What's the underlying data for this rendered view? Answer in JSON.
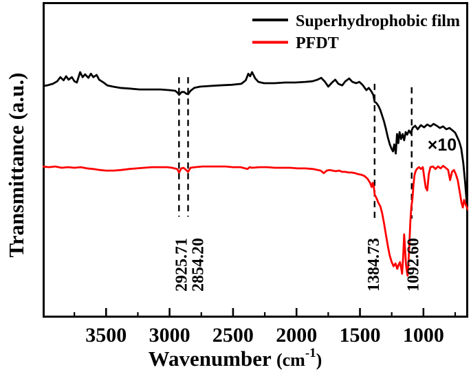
{
  "chart_data": {
    "type": "line",
    "title": "",
    "ylabel": "Transmittance (a.u.)",
    "xlabel": {
      "word": "Wavenumber ",
      "unit": "(cm",
      "sup": "-1",
      "close": ")"
    },
    "x_axis": {
      "min": 4000,
      "max": 647,
      "reversed": true,
      "unit": "cm-1",
      "major_ticks": [
        3500,
        3000,
        2500,
        2000,
        1500,
        1000
      ],
      "minor_ticks": [
        3750,
        3250,
        2750,
        2250,
        1750,
        1250,
        750
      ]
    },
    "y_axis": {
      "label": "Transmittance (a.u.)",
      "range": [
        0,
        1
      ],
      "ticks": [],
      "arbitrary_units": true
    },
    "grid": false,
    "legend_position": "top-right-inside",
    "legend": [
      {
        "label": "Superhydrophobic film",
        "color": "#000000"
      },
      {
        "label": "PFDT",
        "color": "#ff0000"
      }
    ],
    "annotations": {
      "scale_note": "×10",
      "peak_lines": [
        {
          "value": 2925.71,
          "label": "2925.71",
          "line_top": 0.762,
          "line_bottom": 0.32,
          "label_dx": 11
        },
        {
          "value": 2854.2,
          "label": "2854.20",
          "line_top": 0.762,
          "line_bottom": 0.32,
          "label_dx": 22
        },
        {
          "value": 1384.73,
          "label": "1384.73",
          "line_top": 0.741,
          "line_bottom": 0.305,
          "label_dx": 6
        },
        {
          "value": 1092.6,
          "label": "1092.60",
          "line_top": 0.73,
          "line_bottom": 0.314,
          "label_dx": 10
        }
      ]
    },
    "series": [
      {
        "name": "Superhydrophobic film",
        "color": "#000000",
        "points": [
          [
            4005,
            0.734
          ],
          [
            3965,
            0.736
          ],
          [
            3920,
            0.741
          ],
          [
            3885,
            0.749
          ],
          [
            3860,
            0.762
          ],
          [
            3835,
            0.752
          ],
          [
            3815,
            0.765
          ],
          [
            3795,
            0.754
          ],
          [
            3770,
            0.762
          ],
          [
            3750,
            0.749
          ],
          [
            3730,
            0.745
          ],
          [
            3705,
            0.778
          ],
          [
            3685,
            0.762
          ],
          [
            3665,
            0.771
          ],
          [
            3640,
            0.76
          ],
          [
            3620,
            0.773
          ],
          [
            3600,
            0.762
          ],
          [
            3575,
            0.769
          ],
          [
            3555,
            0.754
          ],
          [
            3520,
            0.745
          ],
          [
            3490,
            0.736
          ],
          [
            3445,
            0.732
          ],
          [
            3390,
            0.728
          ],
          [
            3315,
            0.726
          ],
          [
            3235,
            0.723
          ],
          [
            3150,
            0.723
          ],
          [
            3070,
            0.723
          ],
          [
            3000,
            0.721
          ],
          [
            2955,
            0.719
          ],
          [
            2935,
            0.712
          ],
          [
            2925,
            0.706
          ],
          [
            2905,
            0.715
          ],
          [
            2885,
            0.715
          ],
          [
            2870,
            0.71
          ],
          [
            2854,
            0.708
          ],
          [
            2835,
            0.719
          ],
          [
            2805,
            0.728
          ],
          [
            2760,
            0.732
          ],
          [
            2690,
            0.734
          ],
          [
            2610,
            0.736
          ],
          [
            2510,
            0.738
          ],
          [
            2435,
            0.741
          ],
          [
            2400,
            0.752
          ],
          [
            2380,
            0.773
          ],
          [
            2365,
            0.765
          ],
          [
            2350,
            0.778
          ],
          [
            2325,
            0.758
          ],
          [
            2300,
            0.747
          ],
          [
            2255,
            0.743
          ],
          [
            2175,
            0.743
          ],
          [
            2090,
            0.745
          ],
          [
            2010,
            0.745
          ],
          [
            1930,
            0.747
          ],
          [
            1875,
            0.749
          ],
          [
            1835,
            0.754
          ],
          [
            1805,
            0.76
          ],
          [
            1775,
            0.747
          ],
          [
            1750,
            0.732
          ],
          [
            1720,
            0.745
          ],
          [
            1695,
            0.754
          ],
          [
            1670,
            0.741
          ],
          [
            1640,
            0.736
          ],
          [
            1615,
            0.749
          ],
          [
            1585,
            0.758
          ],
          [
            1560,
            0.747
          ],
          [
            1530,
            0.743
          ],
          [
            1505,
            0.747
          ],
          [
            1480,
            0.738
          ],
          [
            1450,
            0.721
          ],
          [
            1430,
            0.728
          ],
          [
            1410,
            0.717
          ],
          [
            1395,
            0.706
          ],
          [
            1385,
            0.684
          ],
          [
            1370,
            0.68
          ],
          [
            1355,
            0.671
          ],
          [
            1340,
            0.658
          ],
          [
            1325,
            0.64
          ],
          [
            1310,
            0.621
          ],
          [
            1295,
            0.597
          ],
          [
            1280,
            0.571
          ],
          [
            1265,
            0.549
          ],
          [
            1252,
            0.536
          ],
          [
            1240,
            0.527
          ],
          [
            1230,
            0.549
          ],
          [
            1218,
            0.52
          ],
          [
            1208,
            0.582
          ],
          [
            1198,
            0.553
          ],
          [
            1188,
            0.588
          ],
          [
            1176,
            0.566
          ],
          [
            1164,
            0.582
          ],
          [
            1152,
            0.562
          ],
          [
            1140,
            0.588
          ],
          [
            1128,
            0.58
          ],
          [
            1114,
            0.593
          ],
          [
            1100,
            0.584
          ],
          [
            1085,
            0.601
          ],
          [
            1065,
            0.608
          ],
          [
            1045,
            0.597
          ],
          [
            1020,
            0.61
          ],
          [
            995,
            0.603
          ],
          [
            970,
            0.612
          ],
          [
            945,
            0.606
          ],
          [
            920,
            0.614
          ],
          [
            895,
            0.608
          ],
          [
            870,
            0.601
          ],
          [
            845,
            0.606
          ],
          [
            820,
            0.597
          ],
          [
            795,
            0.601
          ],
          [
            770,
            0.593
          ],
          [
            750,
            0.586
          ],
          [
            735,
            0.573
          ],
          [
            718,
            0.558
          ],
          [
            702,
            0.536
          ],
          [
            686,
            0.49
          ],
          [
            672,
            0.43
          ],
          [
            660,
            0.37
          ],
          [
            650,
            0.335
          ]
        ]
      },
      {
        "name": "PFDT",
        "color": "#ff0000",
        "points": [
          [
            4005,
            0.479
          ],
          [
            3950,
            0.477
          ],
          [
            3900,
            0.479
          ],
          [
            3850,
            0.475
          ],
          [
            3800,
            0.477
          ],
          [
            3750,
            0.475
          ],
          [
            3700,
            0.477
          ],
          [
            3650,
            0.473
          ],
          [
            3600,
            0.471
          ],
          [
            3550,
            0.468
          ],
          [
            3500,
            0.466
          ],
          [
            3440,
            0.466
          ],
          [
            3380,
            0.468
          ],
          [
            3320,
            0.471
          ],
          [
            3260,
            0.473
          ],
          [
            3200,
            0.475
          ],
          [
            3140,
            0.477
          ],
          [
            3080,
            0.477
          ],
          [
            3020,
            0.477
          ],
          [
            2980,
            0.475
          ],
          [
            2940,
            0.471
          ],
          [
            2925,
            0.46
          ],
          [
            2908,
            0.473
          ],
          [
            2890,
            0.475
          ],
          [
            2870,
            0.468
          ],
          [
            2854,
            0.462
          ],
          [
            2835,
            0.475
          ],
          [
            2800,
            0.477
          ],
          [
            2740,
            0.479
          ],
          [
            2680,
            0.479
          ],
          [
            2620,
            0.479
          ],
          [
            2560,
            0.479
          ],
          [
            2500,
            0.477
          ],
          [
            2440,
            0.477
          ],
          [
            2385,
            0.471
          ],
          [
            2370,
            0.477
          ],
          [
            2350,
            0.475
          ],
          [
            2290,
            0.477
          ],
          [
            2230,
            0.477
          ],
          [
            2170,
            0.475
          ],
          [
            2110,
            0.475
          ],
          [
            2050,
            0.475
          ],
          [
            1990,
            0.473
          ],
          [
            1930,
            0.473
          ],
          [
            1870,
            0.471
          ],
          [
            1810,
            0.466
          ],
          [
            1785,
            0.458
          ],
          [
            1762,
            0.466
          ],
          [
            1740,
            0.468
          ],
          [
            1715,
            0.466
          ],
          [
            1690,
            0.464
          ],
          [
            1665,
            0.466
          ],
          [
            1640,
            0.462
          ],
          [
            1615,
            0.462
          ],
          [
            1590,
            0.46
          ],
          [
            1565,
            0.46
          ],
          [
            1540,
            0.458
          ],
          [
            1515,
            0.455
          ],
          [
            1490,
            0.453
          ],
          [
            1465,
            0.449
          ],
          [
            1440,
            0.44
          ],
          [
            1420,
            0.427
          ],
          [
            1408,
            0.414
          ],
          [
            1400,
            0.427
          ],
          [
            1392,
            0.418
          ],
          [
            1384,
            0.39
          ],
          [
            1370,
            0.379
          ],
          [
            1355,
            0.364
          ],
          [
            1340,
            0.353
          ],
          [
            1325,
            0.331
          ],
          [
            1310,
            0.298
          ],
          [
            1295,
            0.261
          ],
          [
            1280,
            0.227
          ],
          [
            1265,
            0.196
          ],
          [
            1250,
            0.176
          ],
          [
            1235,
            0.163
          ],
          [
            1220,
            0.172
          ],
          [
            1206,
            0.155
          ],
          [
            1195,
            0.168
          ],
          [
            1185,
            0.176
          ],
          [
            1175,
            0.157
          ],
          [
            1168,
            0.139
          ],
          [
            1160,
            0.19
          ],
          [
            1152,
            0.264
          ],
          [
            1145,
            0.218
          ],
          [
            1137,
            0.168
          ],
          [
            1130,
            0.146
          ],
          [
            1125,
            0.133
          ],
          [
            1117,
            0.179
          ],
          [
            1110,
            0.24
          ],
          [
            1103,
            0.305
          ],
          [
            1095,
            0.353
          ],
          [
            1087,
            0.375
          ],
          [
            1078,
            0.423
          ],
          [
            1070,
            0.453
          ],
          [
            1060,
            0.466
          ],
          [
            1048,
            0.473
          ],
          [
            1035,
            0.477
          ],
          [
            1020,
            0.471
          ],
          [
            1005,
            0.477
          ],
          [
            992,
            0.44
          ],
          [
            982,
            0.412
          ],
          [
            970,
            0.403
          ],
          [
            958,
            0.455
          ],
          [
            945,
            0.477
          ],
          [
            925,
            0.479
          ],
          [
            905,
            0.471
          ],
          [
            885,
            0.479
          ],
          [
            865,
            0.473
          ],
          [
            845,
            0.481
          ],
          [
            825,
            0.475
          ],
          [
            805,
            0.468
          ],
          [
            790,
            0.436
          ],
          [
            775,
            0.462
          ],
          [
            760,
            0.468
          ],
          [
            745,
            0.455
          ],
          [
            730,
            0.436
          ],
          [
            715,
            0.401
          ],
          [
            700,
            0.364
          ],
          [
            690,
            0.349
          ],
          [
            680,
            0.373
          ],
          [
            668,
            0.359
          ],
          [
            657,
            0.349
          ],
          [
            648,
            0.342
          ]
        ]
      }
    ]
  }
}
